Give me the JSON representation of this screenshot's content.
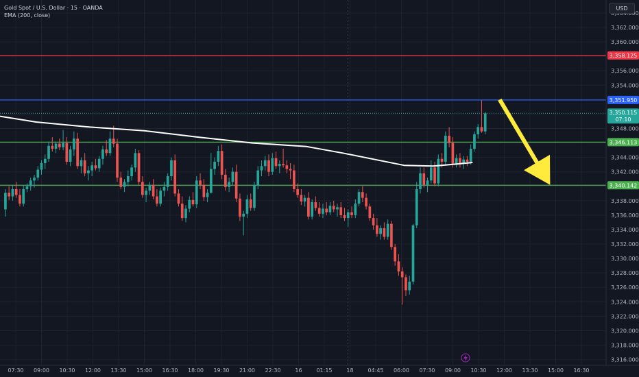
{
  "header": {
    "title": "Gold Spot / U.S. Dollar · 15 · OANDA",
    "indicator": "EMA (200, close)",
    "currency": "USD"
  },
  "colors": {
    "background": "#131722",
    "up": "#26a69a",
    "down": "#ef5350",
    "ema": "#ffffff",
    "red_line": "#f23645",
    "blue_line": "#2962ff",
    "green_line": "#4caf50",
    "arrow": "#ffeb3b",
    "axis_text": "#b2b5be"
  },
  "chart_data": {
    "type": "candlestick",
    "ylim": [
      3315.2,
      3365.8
    ],
    "y_ticks": [
      "3,364.000",
      "3,362.000",
      "3,360.000",
      "3,358.000",
      "3,356.000",
      "3,354.000",
      "3,352.000",
      "3,350.000",
      "3,348.000",
      "3,346.000",
      "3,344.000",
      "3,342.000",
      "3,340.000",
      "3,338.000",
      "3,336.000",
      "3,334.000",
      "3,332.000",
      "3,330.000",
      "3,328.000",
      "3,326.000",
      "3,324.000",
      "3,322.000",
      "3,320.000",
      "3,318.000",
      "3,316.000"
    ],
    "x_ticks": [
      "07:30",
      "09:00",
      "10:30",
      "12:00",
      "13:30",
      "15:00",
      "16:30",
      "18:00",
      "19:30",
      "21:00",
      "22:30",
      "16",
      "01:15",
      "18",
      "04:45",
      "06:00",
      "07:30",
      "09:00",
      "10:30",
      "12:00",
      "13:30",
      "15:00",
      "16:30"
    ],
    "bar_count": 168,
    "candles": [
      [
        3336.8,
        3339.6,
        3335.8,
        3339.1
      ],
      [
        3339.1,
        3340.0,
        3338.1,
        3338.6
      ],
      [
        3338.6,
        3340.2,
        3338.0,
        3339.6
      ],
      [
        3339.6,
        3340.6,
        3338.4,
        3338.8
      ],
      [
        3338.8,
        3339.6,
        3337.2,
        3337.6
      ],
      [
        3337.6,
        3340.1,
        3337.2,
        3339.6
      ],
      [
        3339.6,
        3340.4,
        3339.2,
        3340.0
      ],
      [
        3340.0,
        3341.2,
        3339.4,
        3340.8
      ],
      [
        3340.8,
        3341.6,
        3339.8,
        3341.2
      ],
      [
        3341.2,
        3342.8,
        3340.8,
        3342.3
      ],
      [
        3342.3,
        3343.6,
        3341.6,
        3343.2
      ],
      [
        3343.2,
        3344.4,
        3342.4,
        3343.8
      ],
      [
        3343.8,
        3346.2,
        3343.4,
        3345.6
      ],
      [
        3345.6,
        3346.8,
        3344.8,
        3345.2
      ],
      [
        3345.2,
        3346.2,
        3344.6,
        3345.9
      ],
      [
        3345.9,
        3346.6,
        3345.0,
        3345.4
      ],
      [
        3345.4,
        3347.8,
        3345.0,
        3346.0
      ],
      [
        3346.0,
        3346.8,
        3343.0,
        3343.4
      ],
      [
        3343.4,
        3345.6,
        3342.8,
        3345.1
      ],
      [
        3345.1,
        3347.6,
        3344.2,
        3346.6
      ],
      [
        3346.6,
        3347.4,
        3342.4,
        3342.8
      ],
      [
        3342.8,
        3344.0,
        3341.8,
        3343.6
      ],
      [
        3343.6,
        3344.6,
        3341.4,
        3341.8
      ],
      [
        3341.8,
        3342.8,
        3340.8,
        3342.2
      ],
      [
        3342.2,
        3343.4,
        3341.4,
        3342.9
      ],
      [
        3342.9,
        3343.8,
        3342.2,
        3342.5
      ],
      [
        3342.5,
        3344.2,
        3342.0,
        3343.8
      ],
      [
        3343.8,
        3345.6,
        3343.0,
        3345.1
      ],
      [
        3345.1,
        3346.4,
        3344.2,
        3344.6
      ],
      [
        3344.6,
        3347.6,
        3344.2,
        3346.6
      ],
      [
        3346.6,
        3348.4,
        3345.4,
        3345.9
      ],
      [
        3345.9,
        3346.6,
        3340.6,
        3341.2
      ],
      [
        3341.2,
        3342.0,
        3339.6,
        3339.9
      ],
      [
        3339.9,
        3341.0,
        3339.2,
        3340.6
      ],
      [
        3340.6,
        3342.2,
        3340.0,
        3341.4
      ],
      [
        3341.4,
        3343.0,
        3340.8,
        3342.6
      ],
      [
        3342.6,
        3345.2,
        3342.0,
        3344.6
      ],
      [
        3344.6,
        3345.0,
        3340.2,
        3340.6
      ],
      [
        3340.6,
        3341.4,
        3338.4,
        3338.8
      ],
      [
        3338.8,
        3339.8,
        3337.8,
        3339.4
      ],
      [
        3339.4,
        3340.6,
        3338.8,
        3340.2
      ],
      [
        3340.2,
        3341.0,
        3338.2,
        3338.6
      ],
      [
        3338.6,
        3339.6,
        3337.2,
        3337.6
      ],
      [
        3337.6,
        3339.8,
        3337.2,
        3339.4
      ],
      [
        3339.4,
        3340.6,
        3338.6,
        3339.9
      ],
      [
        3339.9,
        3341.8,
        3339.4,
        3341.4
      ],
      [
        3341.4,
        3344.0,
        3340.8,
        3343.6
      ],
      [
        3343.6,
        3344.4,
        3338.6,
        3339.0
      ],
      [
        3339.0,
        3339.6,
        3337.2,
        3337.6
      ],
      [
        3337.6,
        3338.6,
        3335.2,
        3335.6
      ],
      [
        3335.6,
        3337.4,
        3335.0,
        3336.9
      ],
      [
        3336.9,
        3338.6,
        3336.4,
        3338.1
      ],
      [
        3338.1,
        3339.2,
        3337.2,
        3337.5
      ],
      [
        3337.5,
        3341.4,
        3337.0,
        3340.8
      ],
      [
        3340.8,
        3341.8,
        3339.6,
        3340.2
      ],
      [
        3340.2,
        3341.0,
        3338.0,
        3338.5
      ],
      [
        3338.5,
        3339.6,
        3337.8,
        3339.1
      ],
      [
        3339.1,
        3344.6,
        3339.0,
        3342.4
      ],
      [
        3342.4,
        3344.0,
        3341.6,
        3343.4
      ],
      [
        3343.4,
        3345.6,
        3342.8,
        3344.9
      ],
      [
        3344.9,
        3345.8,
        3341.0,
        3341.6
      ],
      [
        3341.6,
        3342.4,
        3339.4,
        3339.9
      ],
      [
        3339.9,
        3341.2,
        3339.2,
        3340.6
      ],
      [
        3340.6,
        3342.6,
        3340.2,
        3342.0
      ],
      [
        3342.0,
        3343.0,
        3337.8,
        3338.3
      ],
      [
        3338.3,
        3339.0,
        3335.2,
        3335.8
      ],
      [
        3335.8,
        3336.6,
        3333.2,
        3336.2
      ],
      [
        3336.2,
        3338.8,
        3335.6,
        3338.2
      ],
      [
        3338.2,
        3339.0,
        3336.6,
        3337.0
      ],
      [
        3337.0,
        3340.6,
        3336.6,
        3340.1
      ],
      [
        3340.1,
        3342.8,
        3339.6,
        3342.2
      ],
      [
        3342.2,
        3343.6,
        3341.4,
        3342.8
      ],
      [
        3342.8,
        3344.2,
        3342.2,
        3343.6
      ],
      [
        3343.6,
        3344.4,
        3341.4,
        3342.0
      ],
      [
        3342.0,
        3344.6,
        3341.6,
        3343.9
      ],
      [
        3343.9,
        3344.8,
        3342.4,
        3342.8
      ],
      [
        3342.8,
        3343.6,
        3341.8,
        3343.1
      ],
      [
        3343.1,
        3345.2,
        3342.6,
        3342.9
      ],
      [
        3342.9,
        3343.6,
        3341.8,
        3342.4
      ],
      [
        3342.4,
        3343.2,
        3341.0,
        3342.2
      ],
      [
        3342.2,
        3343.0,
        3339.2,
        3339.6
      ],
      [
        3339.6,
        3340.4,
        3338.4,
        3338.8
      ],
      [
        3338.8,
        3339.6,
        3337.4,
        3337.9
      ],
      [
        3337.9,
        3338.8,
        3337.2,
        3338.4
      ],
      [
        3338.4,
        3339.2,
        3335.4,
        3335.8
      ],
      [
        3335.8,
        3338.2,
        3335.4,
        3337.8
      ],
      [
        3337.8,
        3338.6,
        3336.6,
        3337.0
      ],
      [
        3337.0,
        3337.8,
        3335.8,
        3336.2
      ],
      [
        3336.2,
        3337.6,
        3335.6,
        3336.9
      ],
      [
        3336.9,
        3337.8,
        3336.0,
        3336.4
      ],
      [
        3336.4,
        3337.8,
        3336.0,
        3337.3
      ],
      [
        3337.3,
        3338.0,
        3336.4,
        3336.8
      ],
      [
        3336.8,
        3337.6,
        3335.8,
        3337.1
      ],
      [
        3337.1,
        3337.8,
        3335.6,
        3336.0
      ],
      [
        3336.0,
        3337.0,
        3335.2,
        3335.6
      ],
      [
        3335.6,
        3336.8,
        3334.4,
        3336.4
      ],
      [
        3336.4,
        3337.2,
        3335.6,
        3336.0
      ],
      [
        3336.0,
        3338.2,
        3335.6,
        3337.6
      ],
      [
        3337.6,
        3339.6,
        3337.2,
        3339.2
      ],
      [
        3339.2,
        3340.0,
        3337.8,
        3338.4
      ],
      [
        3338.4,
        3339.0,
        3336.8,
        3337.2
      ],
      [
        3337.2,
        3337.6,
        3335.2,
        3335.6
      ],
      [
        3335.6,
        3336.2,
        3334.0,
        3334.6
      ],
      [
        3334.6,
        3335.6,
        3333.0,
        3333.4
      ],
      [
        3333.4,
        3334.6,
        3332.6,
        3334.2
      ],
      [
        3334.2,
        3335.0,
        3332.6,
        3333.0
      ],
      [
        3333.0,
        3335.4,
        3332.6,
        3334.8
      ],
      [
        3334.8,
        3335.2,
        3331.2,
        3331.6
      ],
      [
        3331.6,
        3332.0,
        3329.0,
        3329.6
      ],
      [
        3329.6,
        3330.6,
        3327.6,
        3328.2
      ],
      [
        3328.2,
        3328.8,
        3323.6,
        3327.4
      ],
      [
        3327.4,
        3327.8,
        3324.8,
        3325.6
      ],
      [
        3325.6,
        3327.6,
        3325.0,
        3326.8
      ],
      [
        3326.8,
        3334.8,
        3326.4,
        3334.6
      ],
      [
        3334.6,
        3340.6,
        3334.2,
        3339.6
      ],
      [
        3339.6,
        3342.6,
        3339.0,
        3341.8
      ],
      [
        3341.8,
        3342.6,
        3339.8,
        3340.2
      ],
      [
        3340.2,
        3341.2,
        3339.2,
        3340.8
      ],
      [
        3340.8,
        3343.6,
        3340.4,
        3342.6
      ],
      [
        3342.6,
        3343.4,
        3340.0,
        3340.4
      ],
      [
        3340.4,
        3344.4,
        3340.0,
        3343.8
      ],
      [
        3343.8,
        3344.6,
        3342.6,
        3343.4
      ],
      [
        3343.4,
        3347.6,
        3343.0,
        3347.0
      ],
      [
        3347.0,
        3348.2,
        3345.4,
        3346.0
      ],
      [
        3346.0,
        3346.8,
        3342.6,
        3343.0
      ],
      [
        3343.0,
        3344.4,
        3342.6,
        3343.9
      ],
      [
        3343.9,
        3344.6,
        3342.6,
        3343.2
      ],
      [
        3343.2,
        3344.2,
        3342.4,
        3343.7
      ],
      [
        3343.7,
        3344.2,
        3342.8,
        3343.4
      ],
      [
        3343.4,
        3345.8,
        3343.0,
        3345.2
      ],
      [
        3345.2,
        3347.6,
        3344.8,
        3347.2
      ],
      [
        3347.2,
        3348.6,
        3346.6,
        3348.2
      ],
      [
        3348.2,
        3351.9,
        3347.4,
        3347.6
      ],
      [
        3347.6,
        3350.3,
        3347.2,
        3350.1
      ]
    ],
    "first_candle_slot": 1,
    "ema": [
      [
        0,
        3349.7
      ],
      [
        10,
        3348.9
      ],
      [
        25,
        3348.2
      ],
      [
        40,
        3347.7
      ],
      [
        55,
        3346.8
      ],
      [
        70,
        3346.0
      ],
      [
        85,
        3345.5
      ],
      [
        95,
        3344.6
      ],
      [
        105,
        3343.6
      ],
      [
        112,
        3342.9
      ],
      [
        120,
        3342.8
      ],
      [
        127,
        3343.1
      ],
      [
        131,
        3343.3
      ]
    ],
    "levels": [
      {
        "label": "3,358.125",
        "value": 3358.125,
        "color": "red"
      },
      {
        "label": "3,351.950",
        "value": 3351.95,
        "color": "blue"
      },
      {
        "label": "3,346.113",
        "value": 3346.113,
        "color": "green"
      },
      {
        "label": "3,340.142",
        "value": 3340.142,
        "color": "green"
      }
    ],
    "last_price": {
      "label": "3,350.115",
      "countdown": "07:10",
      "value": 3350.115
    },
    "arrow": {
      "from": [
        138,
        3352.0
      ],
      "to": [
        152,
        3340.2
      ]
    }
  }
}
